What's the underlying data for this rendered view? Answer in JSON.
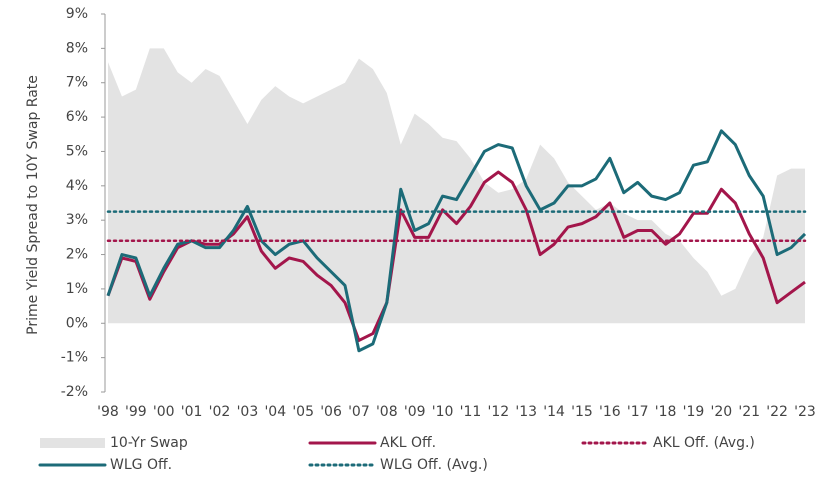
{
  "chart_data": {
    "type": "line",
    "y_axis_label": "Prime Yield Spread to 10Y Swap Rate",
    "x": [
      1998,
      1998.5,
      1999,
      1999.5,
      2000,
      2000.5,
      2001,
      2001.5,
      2002,
      2002.5,
      2003,
      2003.5,
      2004,
      2004.5,
      2005,
      2005.5,
      2006,
      2006.5,
      2007,
      2007.5,
      2008,
      2008.5,
      2009,
      2009.5,
      2010,
      2010.5,
      2011,
      2011.5,
      2012,
      2012.5,
      2013,
      2013.5,
      2014,
      2014.5,
      2015,
      2015.5,
      2016,
      2016.5,
      2017,
      2017.5,
      2018,
      2018.5,
      2019,
      2019.5,
      2020,
      2020.5,
      2021,
      2021.5,
      2022,
      2022.5,
      2023
    ],
    "xlim": [
      1998,
      2023
    ],
    "xticks": [
      {
        "value": 1998,
        "label": "'98"
      },
      {
        "value": 1999,
        "label": "'99"
      },
      {
        "value": 2000,
        "label": "'00"
      },
      {
        "value": 2001,
        "label": "'01"
      },
      {
        "value": 2002,
        "label": "'02"
      },
      {
        "value": 2003,
        "label": "'03"
      },
      {
        "value": 2004,
        "label": "'04"
      },
      {
        "value": 2005,
        "label": "'05"
      },
      {
        "value": 2006,
        "label": "'06"
      },
      {
        "value": 2007,
        "label": "'07"
      },
      {
        "value": 2008,
        "label": "'08"
      },
      {
        "value": 2009,
        "label": "'09"
      },
      {
        "value": 2010,
        "label": "'10"
      },
      {
        "value": 2011,
        "label": "'11"
      },
      {
        "value": 2012,
        "label": "'12"
      },
      {
        "value": 2013,
        "label": "'13"
      },
      {
        "value": 2014,
        "label": "'14"
      },
      {
        "value": 2015,
        "label": "'15"
      },
      {
        "value": 2016,
        "label": "'16"
      },
      {
        "value": 2017,
        "label": "'17"
      },
      {
        "value": 2018,
        "label": "'18"
      },
      {
        "value": 2019,
        "label": "'19"
      },
      {
        "value": 2020,
        "label": "'20"
      },
      {
        "value": 2021,
        "label": "'21"
      },
      {
        "value": 2022,
        "label": "'22"
      },
      {
        "value": 2023,
        "label": "'23"
      }
    ],
    "ylim": [
      -2,
      9
    ],
    "yticks": [
      {
        "value": -2,
        "label": "-2%"
      },
      {
        "value": -1,
        "label": "-1%"
      },
      {
        "value": 0,
        "label": "0%"
      },
      {
        "value": 1,
        "label": "1%"
      },
      {
        "value": 2,
        "label": "2%"
      },
      {
        "value": 3,
        "label": "3%"
      },
      {
        "value": 4,
        "label": "4%"
      },
      {
        "value": 5,
        "label": "5%"
      },
      {
        "value": 6,
        "label": "6%"
      },
      {
        "value": 7,
        "label": "7%"
      },
      {
        "value": 8,
        "label": "8%"
      },
      {
        "value": 9,
        "label": "9%"
      }
    ],
    "series": [
      {
        "name": "10-Yr Swap",
        "color": "#e3e3e3",
        "area": true,
        "values": [
          7.6,
          6.6,
          6.8,
          8.0,
          8.0,
          7.3,
          7.0,
          7.4,
          7.2,
          6.5,
          5.8,
          6.5,
          6.9,
          6.6,
          6.4,
          6.6,
          6.8,
          7.0,
          7.7,
          7.4,
          6.7,
          5.2,
          6.1,
          5.8,
          5.4,
          5.3,
          4.8,
          4.1,
          3.8,
          3.9,
          4.2,
          5.2,
          4.8,
          4.1,
          3.7,
          3.3,
          3.5,
          3.2,
          3.0,
          3.0,
          2.6,
          2.4,
          1.9,
          1.5,
          0.8,
          1.0,
          1.9,
          2.5,
          4.3,
          4.5,
          4.5
        ]
      },
      {
        "name": "AKL Off.",
        "color": "#a3164b",
        "values": [
          0.8,
          1.9,
          1.8,
          0.7,
          1.5,
          2.2,
          2.4,
          2.3,
          2.3,
          2.6,
          3.1,
          2.1,
          1.6,
          1.9,
          1.8,
          1.4,
          1.1,
          0.6,
          -0.5,
          -0.3,
          0.6,
          3.3,
          2.5,
          2.5,
          3.3,
          2.9,
          3.4,
          4.1,
          4.4,
          4.1,
          3.3,
          2.0,
          2.3,
          2.8,
          2.9,
          3.1,
          3.5,
          2.5,
          2.7,
          2.7,
          2.3,
          2.6,
          3.2,
          3.2,
          3.9,
          3.5,
          2.6,
          1.9,
          0.6,
          0.9,
          1.2
        ]
      },
      {
        "name": "WLG Off.",
        "color": "#1c6b78",
        "values": [
          0.8,
          2.0,
          1.9,
          0.8,
          1.6,
          2.3,
          2.4,
          2.2,
          2.2,
          2.7,
          3.4,
          2.4,
          2.0,
          2.3,
          2.4,
          1.9,
          1.5,
          1.1,
          -0.8,
          -0.6,
          0.6,
          3.9,
          2.7,
          2.9,
          3.7,
          3.6,
          4.3,
          5.0,
          5.2,
          5.1,
          4.0,
          3.3,
          3.5,
          4.0,
          4.0,
          4.2,
          4.8,
          3.8,
          4.1,
          3.7,
          3.6,
          3.8,
          4.6,
          4.7,
          5.6,
          5.2,
          4.3,
          3.7,
          2.0,
          2.2,
          2.6
        ]
      }
    ],
    "reference_lines": [
      {
        "name": "AKL Off. (Avg.)",
        "color": "#a3164b",
        "value": 2.4
      },
      {
        "name": "WLG Off. (Avg.)",
        "color": "#1c6b78",
        "value": 3.25
      }
    ]
  }
}
